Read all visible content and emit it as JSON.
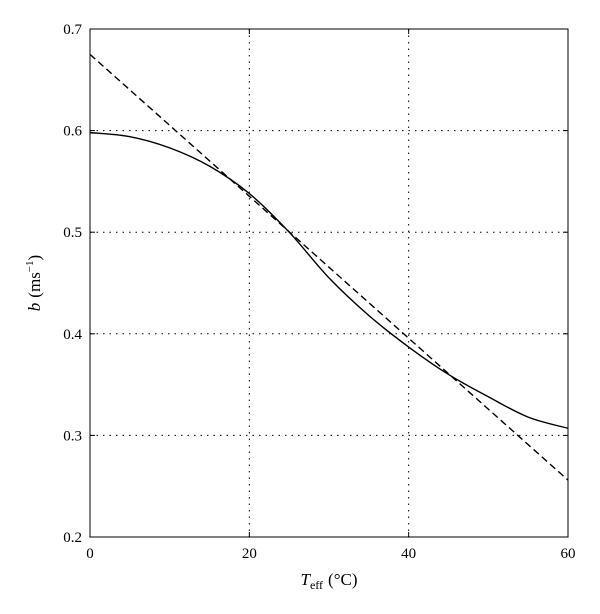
{
  "chart_data": {
    "type": "line",
    "xlabel": {
      "symbol": "T",
      "subscript": "eff",
      "unit": "(°C)"
    },
    "ylabel": {
      "symbol": "b",
      "unit": "(ms",
      "exponent": "−1",
      "close": ")"
    },
    "xlim": [
      0,
      60
    ],
    "ylim": [
      0.2,
      0.7
    ],
    "x_ticks": [
      0,
      20,
      40,
      60
    ],
    "x_tick_labels": [
      "0",
      "20",
      "40",
      "60"
    ],
    "y_ticks": [
      0.2,
      0.3,
      0.4,
      0.5,
      0.6,
      0.7
    ],
    "y_tick_labels": [
      "0.2",
      "0.3",
      "0.4",
      "0.5",
      "0.6",
      "0.7"
    ],
    "grid": "dotted",
    "series": [
      {
        "style": "solid",
        "color": "#000000",
        "x": [
          0,
          5,
          10,
          15,
          20,
          25,
          30,
          35,
          40,
          45,
          50,
          55,
          60
        ],
        "y": [
          0.598,
          0.594,
          0.583,
          0.565,
          0.538,
          0.5,
          0.455,
          0.418,
          0.387,
          0.36,
          0.338,
          0.318,
          0.307
        ]
      },
      {
        "style": "dashed",
        "color": "#000000",
        "x": [
          0,
          60
        ],
        "y": [
          0.675,
          0.256
        ]
      }
    ]
  }
}
